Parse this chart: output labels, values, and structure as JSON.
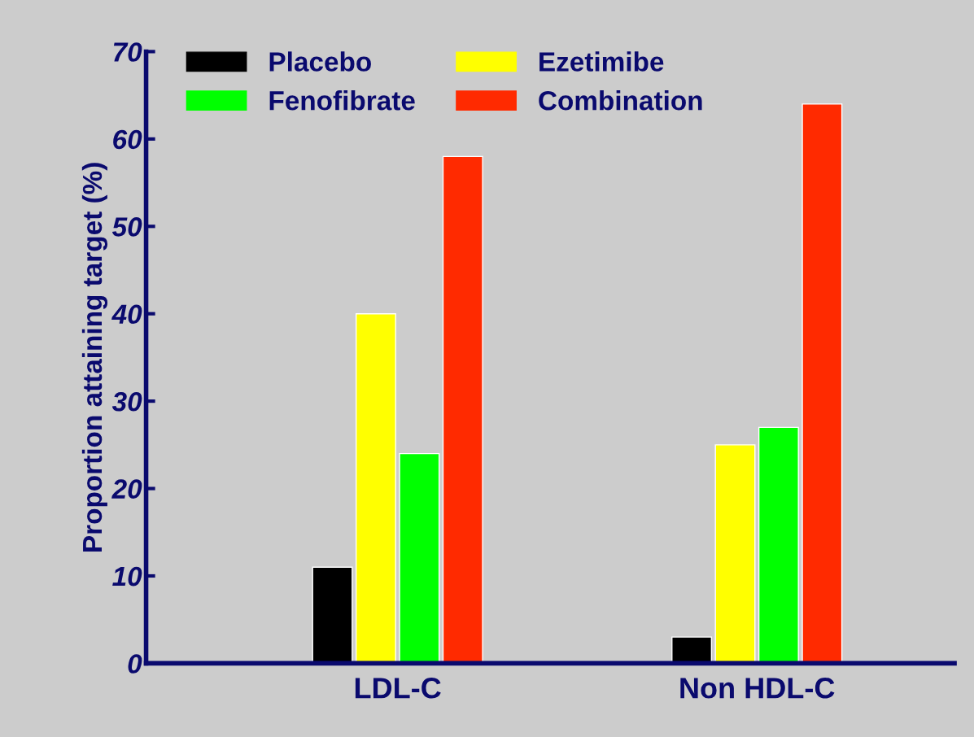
{
  "chart_data": {
    "type": "bar",
    "ylabel": "Proportion attaining target (%)",
    "categories": [
      "LDL-C",
      "Non HDL-C"
    ],
    "series": [
      {
        "name": "Placebo",
        "color": "#000000",
        "values": [
          11,
          3
        ]
      },
      {
        "name": "Ezetimibe",
        "color": "#ffff00",
        "values": [
          40,
          25
        ]
      },
      {
        "name": "Fenofibrate",
        "color": "#00ff00",
        "values": [
          24,
          27
        ]
      },
      {
        "name": "Combination",
        "color": "#ff2a00",
        "values": [
          58,
          64
        ]
      }
    ],
    "ylim": [
      0,
      70
    ],
    "yticks": [
      0,
      10,
      20,
      30,
      40,
      50,
      60,
      70
    ],
    "grid": false,
    "legend": "top left"
  }
}
